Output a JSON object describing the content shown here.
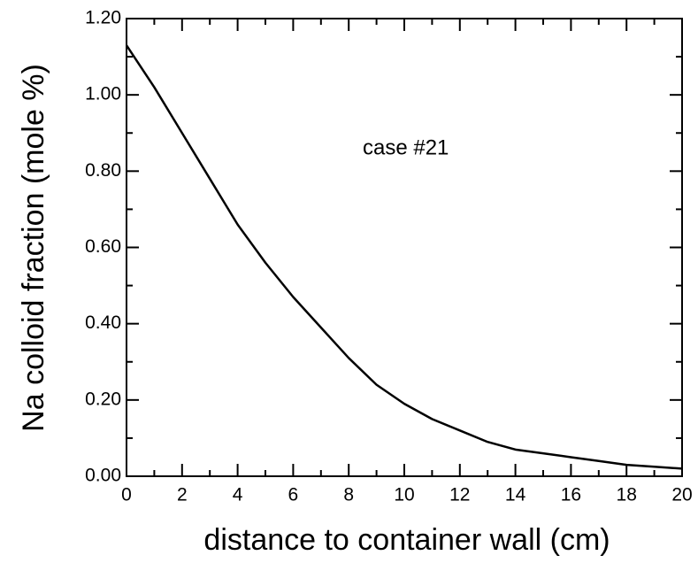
{
  "chart_data": {
    "type": "line",
    "x_label": "distance to container wall (cm)",
    "y_label": "Na colloid fraction (mole %)",
    "annotation": "case #21",
    "x": [
      0,
      1,
      2,
      3,
      4,
      5,
      6,
      7,
      8,
      9,
      10,
      11,
      12,
      13,
      14,
      15,
      16,
      17,
      18,
      19,
      20
    ],
    "series": [
      {
        "color": "#000000",
        "values": [
          1.13,
          1.02,
          0.9,
          0.78,
          0.66,
          0.56,
          0.47,
          0.39,
          0.31,
          0.24,
          0.19,
          0.15,
          0.12,
          0.09,
          0.07,
          0.06,
          0.05,
          0.04,
          0.03,
          0.025,
          0.02
        ]
      }
    ],
    "xlim": [
      0,
      20
    ],
    "ylim": [
      0,
      1.2
    ],
    "xticks": [
      0,
      2,
      4,
      6,
      8,
      10,
      12,
      14,
      16,
      18,
      20
    ],
    "xminorticks": [
      1,
      3,
      5,
      7,
      9,
      11,
      13,
      15,
      17,
      19
    ],
    "yticks": [
      {
        "value": 0,
        "label": "0.00"
      },
      {
        "value": 0.2,
        "label": "0.20"
      },
      {
        "value": 0.4,
        "label": "0.40"
      },
      {
        "value": 0.6,
        "label": "0.60"
      },
      {
        "value": 0.8,
        "label": "0.80"
      },
      {
        "value": 1.0,
        "label": "1.00"
      },
      {
        "value": 1.2,
        "label": "1.20"
      }
    ],
    "yminorticks": [
      0.1,
      0.3,
      0.5,
      0.7,
      0.9,
      1.1
    ],
    "grid": false
  }
}
